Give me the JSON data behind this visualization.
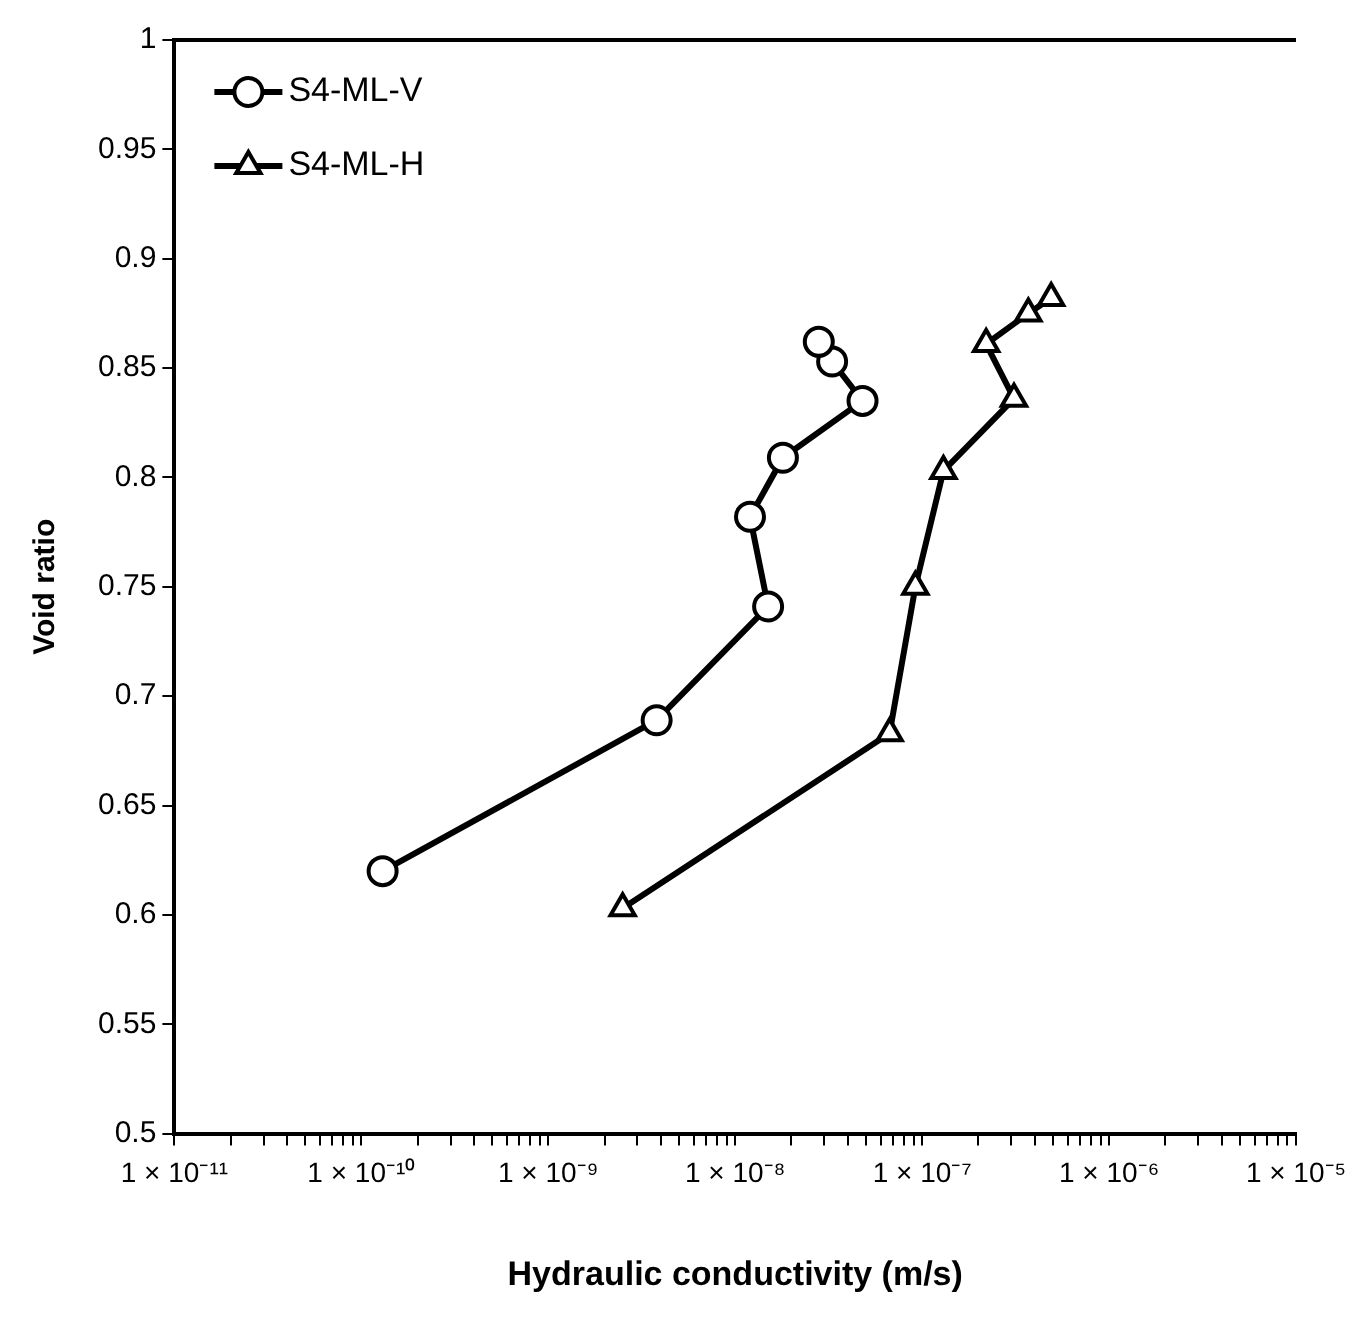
{
  "chart_data": {
    "type": "line",
    "xlabel": "Hydraulic conductivity (m/s)",
    "ylabel": "Void ratio",
    "log": "x",
    "xlim": [
      1e-11,
      1e-05
    ],
    "xticks": [
      {
        "value": 1e-11,
        "label": "1 × 10⁻¹¹"
      },
      {
        "value": 2e-11,
        "label": null
      },
      {
        "value": 3e-11,
        "label": null
      },
      {
        "value": 4e-11,
        "label": null
      },
      {
        "value": 5e-11,
        "label": null
      },
      {
        "value": 6e-11,
        "label": null
      },
      {
        "value": 7e-11,
        "label": null
      },
      {
        "value": 8e-11,
        "label": null
      },
      {
        "value": 9e-11,
        "label": null
      },
      {
        "value": 1e-10,
        "label": "1 × 10⁻¹⁰"
      },
      {
        "value": 2e-10,
        "label": null
      },
      {
        "value": 3e-10,
        "label": null
      },
      {
        "value": 4e-10,
        "label": null
      },
      {
        "value": 5e-10,
        "label": null
      },
      {
        "value": 6e-10,
        "label": null
      },
      {
        "value": 7e-10,
        "label": null
      },
      {
        "value": 8e-10,
        "label": null
      },
      {
        "value": 9e-10,
        "label": null
      },
      {
        "value": 1e-09,
        "label": "1 × 10⁻⁹"
      },
      {
        "value": 2e-09,
        "label": null
      },
      {
        "value": 3e-09,
        "label": null
      },
      {
        "value": 4e-09,
        "label": null
      },
      {
        "value": 5e-09,
        "label": null
      },
      {
        "value": 6e-09,
        "label": null
      },
      {
        "value": 7e-09,
        "label": null
      },
      {
        "value": 8e-09,
        "label": null
      },
      {
        "value": 9e-09,
        "label": null
      },
      {
        "value": 1e-08,
        "label": "1 × 10⁻⁸"
      },
      {
        "value": 2e-08,
        "label": null
      },
      {
        "value": 3e-08,
        "label": null
      },
      {
        "value": 4e-08,
        "label": null
      },
      {
        "value": 5e-08,
        "label": null
      },
      {
        "value": 6e-08,
        "label": null
      },
      {
        "value": 7e-08,
        "label": null
      },
      {
        "value": 8e-08,
        "label": null
      },
      {
        "value": 9e-08,
        "label": null
      },
      {
        "value": 1e-07,
        "label": "1 × 10⁻⁷"
      },
      {
        "value": 2e-07,
        "label": null
      },
      {
        "value": 3e-07,
        "label": null
      },
      {
        "value": 4e-07,
        "label": null
      },
      {
        "value": 5e-07,
        "label": null
      },
      {
        "value": 6e-07,
        "label": null
      },
      {
        "value": 7e-07,
        "label": null
      },
      {
        "value": 8e-07,
        "label": null
      },
      {
        "value": 9e-07,
        "label": null
      },
      {
        "value": 1e-06,
        "label": "1 × 10⁻⁶"
      },
      {
        "value": 2e-06,
        "label": null
      },
      {
        "value": 3e-06,
        "label": null
      },
      {
        "value": 4e-06,
        "label": null
      },
      {
        "value": 5e-06,
        "label": null
      },
      {
        "value": 6e-06,
        "label": null
      },
      {
        "value": 7e-06,
        "label": null
      },
      {
        "value": 8e-06,
        "label": null
      },
      {
        "value": 9e-06,
        "label": null
      },
      {
        "value": 1e-05,
        "label": "1 × 10⁻⁵"
      }
    ],
    "ylim": [
      0.5,
      1
    ],
    "yticks": [
      0.5,
      0.55,
      0.6,
      0.65,
      0.7,
      0.75,
      0.8,
      0.85,
      0.9,
      0.95,
      1
    ],
    "grid": false,
    "legend": "top left",
    "line_style": "solid",
    "series": [
      {
        "name": "S4-ML-V",
        "color": "#000000",
        "marker": "circle",
        "x": [
          1.3e-10,
          3.8e-09,
          1.5e-08,
          1.2e-08,
          1.8e-08,
          4.8e-08,
          3.3e-08,
          2.8e-08
        ],
        "values": [
          0.62,
          0.689,
          0.741,
          0.782,
          0.809,
          0.835,
          0.853,
          0.862
        ]
      },
      {
        "name": "S4-ML-H",
        "color": "#000000",
        "marker": "triangle",
        "x": [
          2.5e-09,
          6.7e-08,
          9.2e-08,
          1.3e-07,
          3.1e-07,
          2.2e-07,
          3.7e-07,
          4.9e-07
        ],
        "values": [
          0.603,
          0.683,
          0.75,
          0.803,
          0.836,
          0.861,
          0.875,
          0.882
        ]
      }
    ]
  }
}
